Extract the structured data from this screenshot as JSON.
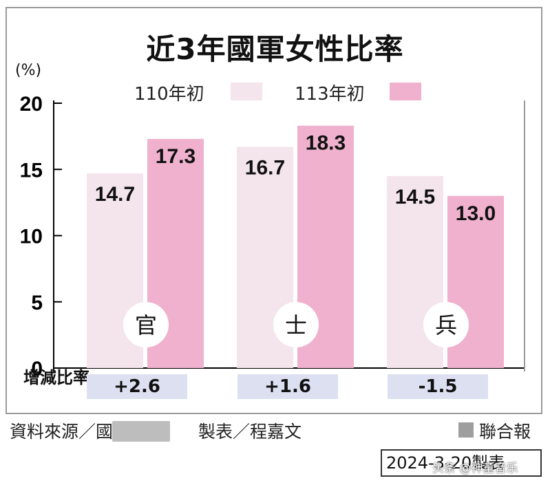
{
  "title": "近3年國軍女性比率",
  "unit_label": "(%)",
  "legend": {
    "series1": "110年初",
    "series2": "113年初"
  },
  "colors": {
    "series1": "#f4e4ec",
    "series2": "#efb1cd",
    "change_box": "#dde0f0"
  },
  "chart_data": {
    "type": "bar",
    "categories": [
      "官",
      "士",
      "兵"
    ],
    "series": [
      {
        "name": "110年初",
        "values": [
          14.7,
          16.7,
          14.5
        ]
      },
      {
        "name": "113年初",
        "values": [
          17.3,
          18.3,
          13.0
        ]
      }
    ],
    "y_ticks": [
      "0",
      "5",
      "10",
      "15",
      "20"
    ],
    "ylim": [
      0,
      20
    ],
    "ylabel": "(%)",
    "value_labels": [
      [
        "14.7",
        "16.7",
        "14.5"
      ],
      [
        "17.3",
        "18.3",
        "13.0"
      ]
    ]
  },
  "change": {
    "label": "增減比率",
    "values": [
      "+2.6",
      "+1.6",
      "-1.5"
    ]
  },
  "footer": {
    "source": "資料來源／國防部",
    "maker": "製表／程嘉文",
    "brand": "聯合報",
    "date": "2024-3-20製表",
    "watermark": "头条 @神童音乐"
  }
}
